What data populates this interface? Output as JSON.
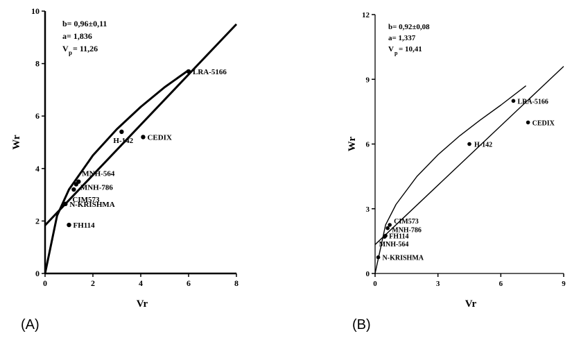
{
  "chart_data": [
    {
      "panel_label": "(A)",
      "type": "scatter",
      "xlabel": "Vr",
      "ylabel": "Wr",
      "xlim": [
        0,
        8
      ],
      "ylim": [
        0,
        10
      ],
      "xticks": [
        0,
        2,
        4,
        6,
        8
      ],
      "yticks": [
        0,
        2,
        4,
        6,
        8,
        10
      ],
      "stats": {
        "b": "b= 0,96±0,11",
        "a": "a= 1,836",
        "vp_main": "V",
        "vp_sub": "p",
        "vp_value": "= 11,26"
      },
      "points": [
        {
          "label": "LRA-5166",
          "x": 6.0,
          "y": 7.7
        },
        {
          "label": "H-142",
          "x": 3.2,
          "y": 5.4
        },
        {
          "label": "CEDIX",
          "x": 4.1,
          "y": 5.2
        },
        {
          "label": "MNH-564",
          "x": 1.4,
          "y": 3.5
        },
        {
          "label": "MNH-786",
          "x": 1.3,
          "y": 3.4
        },
        {
          "label": "CIM573",
          "x": 1.2,
          "y": 3.2
        },
        {
          "label": "N-KRISHMA",
          "x": 0.85,
          "y": 2.65
        },
        {
          "label": "FH114",
          "x": 1.0,
          "y": 1.85
        }
      ],
      "regression_line": {
        "x": [
          0.0,
          8.0
        ],
        "y": [
          1.836,
          9.5
        ]
      },
      "parabola_limit": {
        "x": [
          0,
          0.5,
          1,
          2,
          3,
          4,
          5,
          6
        ],
        "y": [
          0,
          2.2,
          3.2,
          4.5,
          5.5,
          6.35,
          7.1,
          7.75
        ]
      }
    },
    {
      "panel_label": "(B)",
      "type": "scatter",
      "xlabel": "Vr",
      "ylabel": "Wr",
      "xlim": [
        0,
        9
      ],
      "ylim": [
        0,
        12
      ],
      "xticks": [
        0,
        3,
        6,
        9
      ],
      "yticks": [
        0,
        3,
        6,
        9,
        12
      ],
      "stats": {
        "b": "b= 0,92±0,08",
        "a": "a= 1,337",
        "vp_main": "V",
        "vp_sub": "p",
        "vp_value": "= 10,41"
      },
      "points": [
        {
          "label": "LRA-5166",
          "x": 6.6,
          "y": 8.0
        },
        {
          "label": "CEDIX",
          "x": 7.3,
          "y": 7.0
        },
        {
          "label": "H-142",
          "x": 4.5,
          "y": 6.0
        },
        {
          "label": "CIM573",
          "x": 0.7,
          "y": 2.25
        },
        {
          "label": "MNH-786",
          "x": 0.6,
          "y": 2.1
        },
        {
          "label": "FH114",
          "x": 0.5,
          "y": 1.75
        },
        {
          "label": "MNH-564",
          "x": 0.45,
          "y": 1.7
        },
        {
          "label": "N-KRISHMA",
          "x": 0.15,
          "y": 0.75
        }
      ],
      "regression_line": {
        "x": [
          0.0,
          9.0
        ],
        "y": [
          1.337,
          9.6
        ]
      },
      "parabola_limit": {
        "x": [
          0,
          0.5,
          1,
          2,
          3,
          4,
          5,
          6,
          7.2
        ],
        "y": [
          0,
          2.25,
          3.2,
          4.5,
          5.5,
          6.35,
          7.1,
          7.8,
          8.7
        ]
      }
    }
  ]
}
